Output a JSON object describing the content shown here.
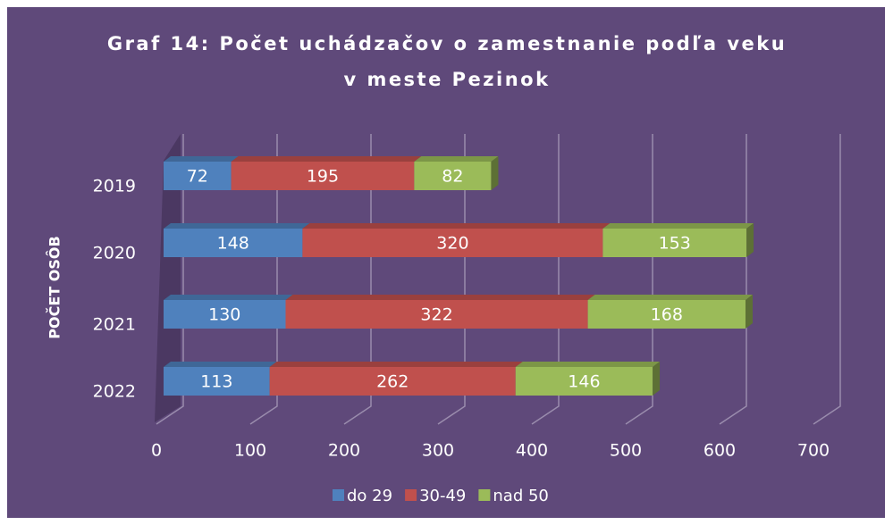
{
  "chart_data": {
    "type": "stacked-bar",
    "orientation": "horizontal",
    "title": [
      "Graf 14: Počet uchádzačov o zamestnanie podľa veku",
      "v meste Pezinok"
    ],
    "y_label": "POČET OSÔB",
    "categories": [
      "2019",
      "2020",
      "2021",
      "2022"
    ],
    "series": [
      {
        "name": "do 29",
        "color": "#4f81bd",
        "values": [
          72,
          148,
          130,
          113
        ]
      },
      {
        "name": "30-49",
        "color": "#c0504d",
        "values": [
          195,
          320,
          322,
          262
        ]
      },
      {
        "name": "nad 50",
        "color": "#9bbb59",
        "values": [
          82,
          153,
          168,
          146
        ]
      }
    ],
    "xlim": [
      0,
      700
    ],
    "xticks": [
      0,
      100,
      200,
      300,
      400,
      500,
      600,
      700
    ],
    "grid": true,
    "legend": "bottom"
  }
}
